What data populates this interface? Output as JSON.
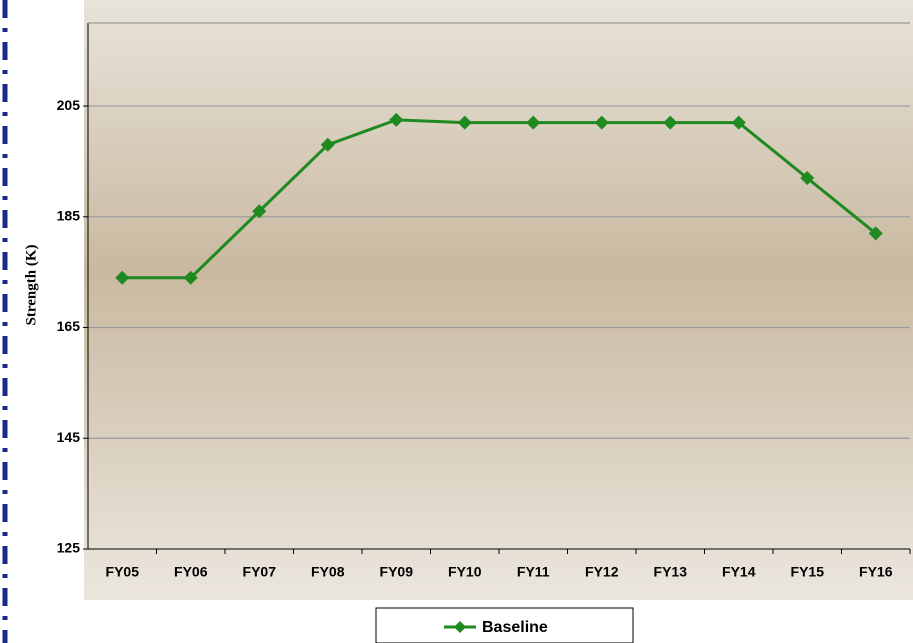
{
  "chart_data": {
    "type": "line",
    "y_label": "Strength (K)",
    "categories": [
      "FY05",
      "FY06",
      "FY07",
      "FY08",
      "FY09",
      "FY10",
      "FY11",
      "FY12",
      "FY13",
      "FY14",
      "FY15",
      "FY16"
    ],
    "series": [
      {
        "name": "Baseline",
        "color": "#1f8a1f",
        "values": [
          174,
          174,
          186,
          198,
          202.5,
          202,
          202,
          202,
          202,
          202,
          192,
          182
        ]
      }
    ],
    "ylim": [
      125,
      220
    ],
    "yticks": [
      125,
      145,
      165,
      185,
      205
    ],
    "grid": true,
    "legend": "bottom"
  }
}
